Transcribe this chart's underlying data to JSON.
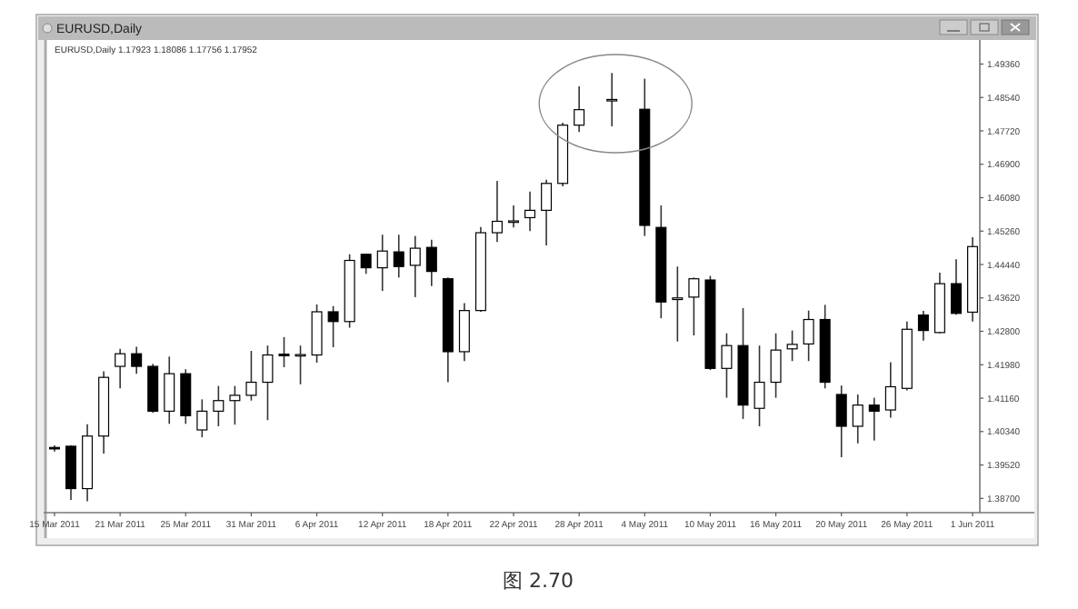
{
  "chart_data": {
    "type": "candlestick",
    "title": "EURUSD,Daily",
    "categories": [
      "15 Mar 2011",
      null,
      null,
      null,
      "21 Mar 2011",
      null,
      null,
      null,
      "25 Mar 2011",
      null,
      null,
      null,
      "31 Mar 2011",
      null,
      null,
      null,
      "6 Apr 2011",
      null,
      null,
      null,
      "12 Apr 2011",
      null,
      null,
      null,
      "18 Apr 2011",
      null,
      null,
      null,
      "22 Apr 2011",
      null,
      null,
      null,
      "28 Apr 2011",
      null,
      null,
      null,
      "4 May 2011",
      null,
      null,
      null,
      "10 May 2011",
      null,
      null,
      null,
      "16 May 2011",
      null,
      null,
      null,
      "20 May 2011",
      null,
      null,
      null,
      "26 May 2011",
      null,
      null,
      null,
      "1 Jun 2011"
    ],
    "ohlc": [
      [
        1.3995,
        1.4,
        1.3985,
        1.3993
      ],
      [
        1.3998,
        1.4,
        1.3866,
        1.3894
      ],
      [
        1.3894,
        1.4052,
        1.3863,
        1.4023
      ],
      [
        1.4023,
        1.4182,
        1.398,
        1.4167
      ],
      [
        1.4194,
        1.4237,
        1.414,
        1.4225
      ],
      [
        1.4225,
        1.4242,
        1.4176,
        1.4194
      ],
      [
        1.4194,
        1.42,
        1.408,
        1.4084
      ],
      [
        1.4084,
        1.4218,
        1.4053,
        1.4176
      ],
      [
        1.4176,
        1.4187,
        1.4053,
        1.4073
      ],
      [
        1.4038,
        1.4113,
        1.402,
        1.4084
      ],
      [
        1.4084,
        1.4146,
        1.4047,
        1.411
      ],
      [
        1.411,
        1.4146,
        1.4051,
        1.4123
      ],
      [
        1.4123,
        1.4232,
        1.411,
        1.4155
      ],
      [
        1.4155,
        1.4245,
        1.4062,
        1.4222
      ],
      [
        1.4224,
        1.4266,
        1.4192,
        1.422
      ],
      [
        1.422,
        1.4245,
        1.415,
        1.4223
      ],
      [
        1.4222,
        1.4346,
        1.4203,
        1.4328
      ],
      [
        1.4328,
        1.4342,
        1.4241,
        1.4304
      ],
      [
        1.4304,
        1.4469,
        1.4289,
        1.4454
      ],
      [
        1.4469,
        1.447,
        1.4421,
        1.4436
      ],
      [
        1.4436,
        1.4517,
        1.4379,
        1.4477
      ],
      [
        1.4475,
        1.4517,
        1.4412,
        1.4439
      ],
      [
        1.4442,
        1.4514,
        1.4364,
        1.4484
      ],
      [
        1.4486,
        1.4505,
        1.4391,
        1.4427
      ],
      [
        1.4409,
        1.4412,
        1.4155,
        1.423
      ],
      [
        1.423,
        1.4349,
        1.4207,
        1.4331
      ],
      [
        1.4331,
        1.4536,
        1.4328,
        1.4522
      ],
      [
        1.4522,
        1.4649,
        1.4499,
        1.455
      ],
      [
        1.4549,
        1.4589,
        1.4535,
        1.4551
      ],
      [
        1.4559,
        1.4623,
        1.4526,
        1.4577
      ],
      [
        1.4577,
        1.4652,
        1.4491,
        1.4643
      ],
      [
        1.4643,
        1.4792,
        1.4636,
        1.4786
      ],
      [
        1.4786,
        1.4881,
        1.4769,
        1.4824
      ],
      null,
      [
        1.4847,
        1.4914,
        1.4783,
        1.4849
      ],
      null,
      [
        1.4825,
        1.49,
        1.4514,
        1.454
      ],
      [
        1.4535,
        1.4589,
        1.4312,
        1.4352
      ],
      [
        1.4358,
        1.4439,
        1.4255,
        1.4362
      ],
      [
        1.4364,
        1.4412,
        1.427,
        1.4409
      ],
      [
        1.4406,
        1.4416,
        1.4185,
        1.4189
      ],
      [
        1.4189,
        1.4275,
        1.4117,
        1.4245
      ],
      [
        1.4245,
        1.4337,
        1.4065,
        1.4099
      ],
      [
        1.4091,
        1.4245,
        1.4047,
        1.4155
      ],
      [
        1.4155,
        1.4275,
        1.4117,
        1.4234
      ],
      [
        1.4237,
        1.4282,
        1.4207,
        1.4248
      ],
      [
        1.4249,
        1.4331,
        1.4207,
        1.4309
      ],
      [
        1.4309,
        1.4345,
        1.414,
        1.4155
      ],
      [
        1.4125,
        1.4147,
        1.3971,
        1.4047
      ],
      [
        1.4047,
        1.4125,
        1.4005,
        1.4099
      ],
      [
        1.4099,
        1.4117,
        1.4012,
        1.4084
      ],
      [
        1.4087,
        1.4204,
        1.4068,
        1.4144
      ],
      [
        1.414,
        1.4304,
        1.4135,
        1.4285
      ],
      [
        1.432,
        1.433,
        1.4257,
        1.4282
      ],
      [
        1.4277,
        1.4424,
        1.4275,
        1.4397
      ],
      [
        1.4397,
        1.4457,
        1.4321,
        1.4324
      ],
      [
        1.4327,
        1.4511,
        1.4304,
        1.4488
      ]
    ],
    "ylim": [
      1.3835,
      1.4995
    ],
    "yticks": [
      {
        "value": 1.387,
        "label": "1.38700"
      },
      {
        "value": 1.3952,
        "label": "1.39520"
      },
      {
        "value": 1.4034,
        "label": "1.40340"
      },
      {
        "value": 1.4116,
        "label": "1.41160"
      },
      {
        "value": 1.4198,
        "label": "1.41980"
      },
      {
        "value": 1.428,
        "label": "1.42800"
      },
      {
        "value": 1.4362,
        "label": "1.43620"
      },
      {
        "value": 1.4444,
        "label": "1.44440"
      },
      {
        "value": 1.4526,
        "label": "1.45260"
      },
      {
        "value": 1.4608,
        "label": "1.46080"
      },
      {
        "value": 1.469,
        "label": "1.46900"
      },
      {
        "value": 1.4772,
        "label": "1.47720"
      },
      {
        "value": 1.4854,
        "label": "1.48540"
      },
      {
        "value": 1.4936,
        "label": "1.49360"
      }
    ],
    "annotations": [
      "EURUSD,Daily 1.17923 1.18086 1.17756 1.17952",
      "图 2.70"
    ]
  }
}
